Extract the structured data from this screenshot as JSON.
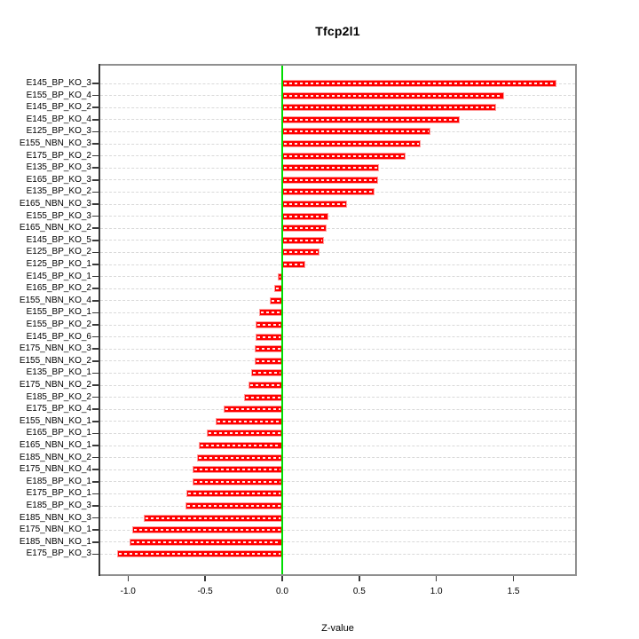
{
  "chart_data": {
    "type": "bar",
    "orientation": "horizontal",
    "title": "Tfcp2l1",
    "xlabel": "Z-value",
    "ylabel": "",
    "xlim": [
      -1.18,
      1.9
    ],
    "x_ticks": [
      -1.0,
      -0.5,
      0.0,
      0.5,
      1.0,
      1.5
    ],
    "x_tick_labels": [
      "-1.0",
      "-0.5",
      "0.0",
      "0.5",
      "1.0",
      "1.5"
    ],
    "grid": "horizontal-dashed-per-category",
    "legend": "none",
    "zero_line": 0.0,
    "categories": [
      "E145_BP_KO_3",
      "E155_BP_KO_4",
      "E145_BP_KO_2",
      "E145_BP_KO_4",
      "E125_BP_KO_3",
      "E155_NBN_KO_3",
      "E175_BP_KO_2",
      "E135_BP_KO_3",
      "E165_BP_KO_3",
      "E135_BP_KO_2",
      "E165_NBN_KO_3",
      "E155_BP_KO_3",
      "E165_NBN_KO_2",
      "E145_BP_KO_5",
      "E125_BP_KO_2",
      "E125_BP_KO_1",
      "E145_BP_KO_1",
      "E165_BP_KO_2",
      "E155_NBN_KO_4",
      "E155_BP_KO_1",
      "E155_BP_KO_2",
      "E145_BP_KO_6",
      "E175_NBN_KO_3",
      "E155_NBN_KO_2",
      "E135_BP_KO_1",
      "E175_NBN_KO_2",
      "E185_BP_KO_2",
      "E175_BP_KO_4",
      "E155_NBN_KO_1",
      "E165_BP_KO_1",
      "E165_NBN_KO_1",
      "E185_NBN_KO_2",
      "E175_NBN_KO_4",
      "E185_BP_KO_1",
      "E175_BP_KO_1",
      "E185_BP_KO_3",
      "E185_NBN_KO_3",
      "E175_NBN_KO_1",
      "E185_NBN_KO_1",
      "E175_BP_KO_3"
    ],
    "values": [
      1.78,
      1.44,
      1.39,
      1.15,
      0.96,
      0.9,
      0.8,
      0.63,
      0.62,
      0.6,
      0.42,
      0.3,
      0.29,
      0.27,
      0.24,
      0.15,
      -0.03,
      -0.05,
      -0.08,
      -0.15,
      -0.17,
      -0.17,
      -0.18,
      -0.18,
      -0.2,
      -0.22,
      -0.25,
      -0.38,
      -0.43,
      -0.49,
      -0.54,
      -0.55,
      -0.58,
      -0.58,
      -0.62,
      -0.63,
      -0.9,
      -0.97,
      -0.99,
      -1.07
    ],
    "colors": {
      "bar_fill": "#ff0000",
      "bar_edge": "#ff9d9d",
      "bar_center_dash": "#ffffff",
      "zero_line": "#00dd00",
      "gridline": "#d9d9d9",
      "panel_border": "#8f8f8f",
      "axis": "#3a3a3a",
      "text": "#000000",
      "background": "#ffffff"
    }
  }
}
